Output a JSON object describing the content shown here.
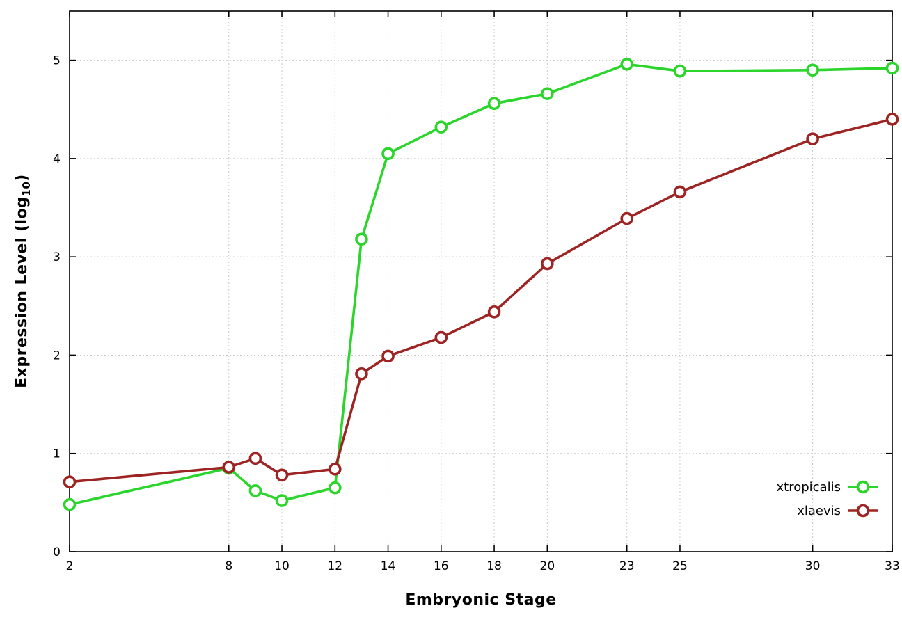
{
  "chart_data": {
    "type": "line",
    "title": "",
    "xlabel": "Embryonic Stage",
    "ylabel_main": "Expression Level (log",
    "ylabel_sub": "10",
    "ylabel_close": ")",
    "x": [
      2,
      8,
      9,
      10,
      12,
      13,
      14,
      16,
      18,
      20,
      23,
      25,
      30,
      33
    ],
    "series": [
      {
        "name": "xtropicalis",
        "color": "#2cd52c",
        "values": [
          0.48,
          0.85,
          0.62,
          0.52,
          0.65,
          3.18,
          4.05,
          4.32,
          4.56,
          4.66,
          4.96,
          4.89,
          4.9,
          4.92
        ]
      },
      {
        "name": "xlaevis",
        "color": "#9e2424",
        "values": [
          0.71,
          0.86,
          0.95,
          0.78,
          0.84,
          1.81,
          1.99,
          2.18,
          2.44,
          2.93,
          3.39,
          3.66,
          4.2,
          4.4
        ]
      }
    ],
    "xlim": [
      2,
      33
    ],
    "ylim": [
      0,
      5.5
    ],
    "xticks": [
      2,
      8,
      10,
      12,
      14,
      16,
      18,
      20,
      23,
      25,
      30,
      33
    ],
    "yticks": [
      0,
      1,
      2,
      3,
      4,
      5
    ],
    "grid": true,
    "grid_color": "#c9c9c9",
    "border_color": "#000000",
    "marker": "open-circle",
    "legend_position": "bottom-right"
  }
}
